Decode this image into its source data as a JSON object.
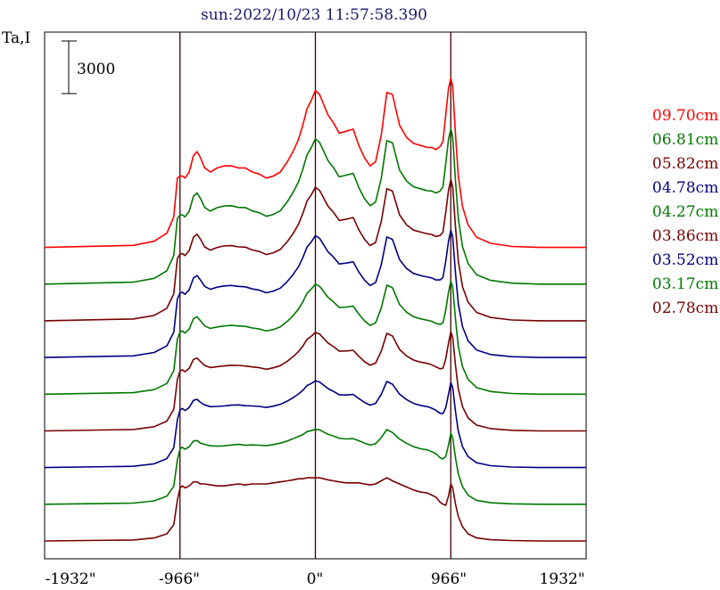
{
  "chart_data": {
    "type": "line",
    "title": "sun:2022/10/23 11:57:58.390",
    "ylabel": "Ta,I",
    "scale_bar_label": "3000",
    "x_tick_labels": [
      "-1932\"",
      "-966\"",
      "0\"",
      "966\"",
      "1932\""
    ],
    "x_ticks": [
      -1932,
      -966,
      0,
      966,
      1932
    ],
    "xlim": [
      -1932,
      1932
    ],
    "vertical_markers": [
      -966,
      0,
      966
    ],
    "grid": false,
    "legend_position": "right",
    "series": [
      {
        "name": "09.70cm",
        "color": "#ff0000",
        "offset_rank": 8
      },
      {
        "name": "06.81cm",
        "color": "#007800",
        "offset_rank": 7
      },
      {
        "name": "05.82cm",
        "color": "#780000",
        "offset_rank": 6
      },
      {
        "name": "04.78cm",
        "color": "#000082",
        "offset_rank": 5
      },
      {
        "name": "04.27cm",
        "color": "#007800",
        "offset_rank": 4
      },
      {
        "name": "03.86cm",
        "color": "#780000",
        "offset_rank": 3
      },
      {
        "name": "03.52cm",
        "color": "#000082",
        "offset_rank": 2
      },
      {
        "name": "03.17cm",
        "color": "#007800",
        "offset_rank": 1
      },
      {
        "name": "02.78cm",
        "color": "#780000",
        "offset_rank": 0
      }
    ],
    "profile_x": [
      -1932,
      -1300,
      -1150,
      -1060,
      -1010,
      -985,
      -966,
      -950,
      -930,
      -900,
      -870,
      -845,
      -820,
      -790,
      -750,
      -700,
      -650,
      -600,
      -550,
      -500,
      -450,
      -400,
      -350,
      -300,
      -250,
      -200,
      -160,
      -120,
      -90,
      -60,
      -30,
      0,
      30,
      60,
      90,
      130,
      170,
      220,
      270,
      310,
      350,
      390,
      430,
      470,
      510,
      550,
      600,
      650,
      700,
      750,
      800,
      830,
      860,
      890,
      910,
      930,
      950,
      966,
      980,
      1000,
      1020,
      1050,
      1090,
      1150,
      1250,
      1400,
      1600,
      1932
    ],
    "profile_y_top": [
      0,
      100,
      300,
      700,
      1500,
      3400,
      3500,
      3500,
      3400,
      3700,
      4500,
      4700,
      4400,
      3900,
      3700,
      3900,
      4000,
      4000,
      3900,
      3900,
      3700,
      3600,
      3400,
      3500,
      3700,
      4200,
      4700,
      5300,
      6000,
      6800,
      7200,
      7700,
      7500,
      7000,
      6500,
      6100,
      5600,
      5700,
      5800,
      5000,
      4400,
      4000,
      4200,
      5500,
      7600,
      7500,
      6000,
      5400,
      5100,
      5000,
      4900,
      4900,
      4800,
      4950,
      5200,
      6500,
      7800,
      8300,
      7900,
      5500,
      3500,
      2000,
      1100,
      500,
      200,
      50,
      0,
      0
    ],
    "profile_y_bottom": [
      0,
      50,
      150,
      350,
      800,
      2000,
      2600,
      2700,
      2600,
      2700,
      2900,
      2900,
      2800,
      2800,
      2750,
      2700,
      2700,
      2750,
      2800,
      2750,
      2800,
      2800,
      2800,
      2850,
      2900,
      2950,
      3000,
      3050,
      3050,
      3100,
      3100,
      3100,
      3100,
      3050,
      3000,
      2950,
      2900,
      2850,
      2850,
      2850,
      2800,
      2750,
      2800,
      2950,
      3100,
      2950,
      2800,
      2650,
      2500,
      2400,
      2350,
      2250,
      2150,
      1900,
      1800,
      1750,
      2200,
      2800,
      2600,
      1800,
      1200,
      700,
      350,
      150,
      60,
      20,
      0,
      0
    ],
    "series_offset_step": 1800,
    "y_range": [
      0,
      24000
    ]
  }
}
